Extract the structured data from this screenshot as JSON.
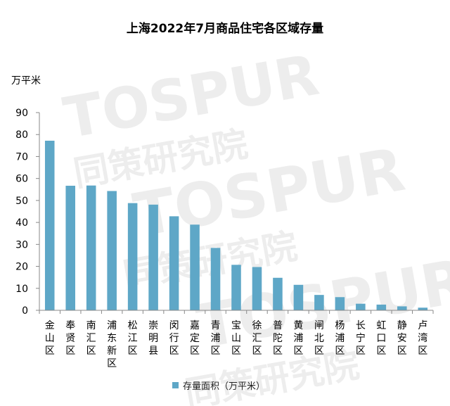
{
  "chart_data": {
    "type": "bar",
    "title": "上海2022年7月商品住宅各区域存量",
    "ylabel": "万平米",
    "ylim": [
      0,
      90
    ],
    "yticks": [
      0,
      10,
      20,
      30,
      40,
      50,
      60,
      70,
      80,
      90
    ],
    "grid": false,
    "legend_position": "bottom",
    "categories": [
      "金山区",
      "奉贤区",
      "南汇区",
      "浦东新区",
      "松江区",
      "崇明县",
      "闵行区",
      "嘉定区",
      "青浦区",
      "宝山区",
      "徐汇区",
      "普陀区",
      "黄浦区",
      "闸北区",
      "杨浦区",
      "长宁区",
      "虹口区",
      "静安区",
      "卢湾区"
    ],
    "series": [
      {
        "name": "存量面积（万平米）",
        "color": "#5ea7c7",
        "values": [
          77.2,
          56.7,
          56.8,
          54.3,
          48.8,
          48.1,
          42.8,
          39.0,
          28.4,
          20.7,
          19.7,
          14.8,
          11.6,
          7.0,
          6.0,
          3.0,
          2.6,
          1.8,
          1.2
        ]
      }
    ]
  },
  "watermark": {
    "text_latin": "TOSPUR",
    "text_cn": "同策研究院"
  }
}
